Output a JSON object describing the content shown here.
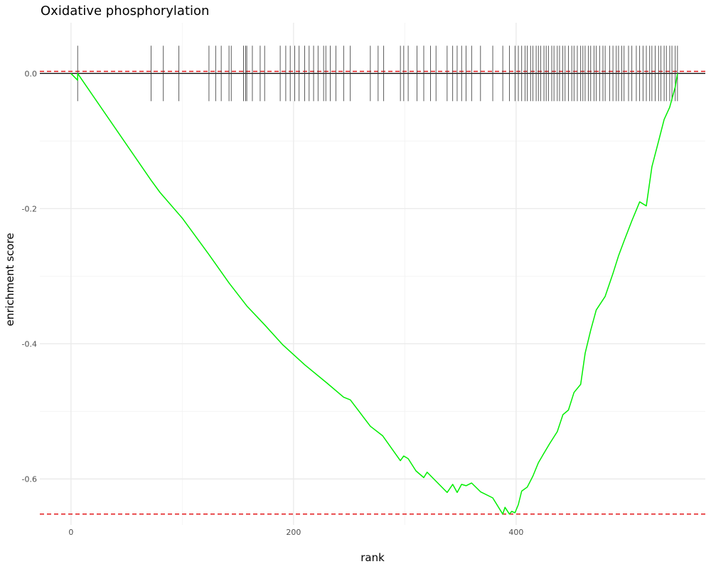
{
  "chart_data": {
    "type": "line",
    "title": "Oxidative phosphorylation",
    "xlabel": "rank",
    "ylabel": "enrichment score",
    "xlim": [
      -28,
      570
    ],
    "ylim": [
      -0.668,
      0.075
    ],
    "x_ticks": [
      0,
      200,
      400
    ],
    "x_tick_labels": [
      "0",
      "200",
      "400"
    ],
    "y_ticks": [
      0.0,
      -0.2,
      -0.4,
      -0.6
    ],
    "y_tick_labels": [
      "0.0",
      "-0.2",
      "-0.4",
      "-0.6"
    ],
    "grid": true,
    "zero_line": 0.0,
    "reference_lines": [
      0.003,
      -0.652
    ],
    "colors": {
      "curve": "#00ee00",
      "reference": "#e31a1c",
      "ticks": "#333333",
      "grid": "#ebebeb",
      "zero": "#000000"
    },
    "hits": [
      6,
      72,
      83,
      97,
      124,
      130,
      135,
      142,
      144,
      155,
      157,
      158,
      163,
      170,
      174,
      188,
      193,
      197,
      201,
      205,
      210,
      214,
      218,
      222,
      227,
      229,
      233,
      238,
      245,
      251,
      269,
      276,
      281,
      296,
      299,
      303,
      311,
      317,
      323,
      328,
      338,
      343,
      347,
      351,
      355,
      360,
      368,
      379,
      388,
      394,
      399,
      402,
      405,
      408,
      410,
      413,
      415,
      418,
      420,
      422,
      425,
      427,
      429,
      432,
      434,
      437,
      439,
      442,
      444,
      447,
      450,
      452,
      455,
      458,
      460,
      462,
      465,
      467,
      470,
      472,
      475,
      478,
      480,
      484,
      487,
      490,
      492,
      495,
      497,
      501,
      504,
      508,
      511,
      514,
      517,
      520,
      522,
      525,
      528,
      530,
      533,
      535,
      538,
      540,
      543,
      545
    ],
    "es_curve": {
      "x": [
        0,
        6,
        6,
        72,
        80,
        100,
        120,
        124,
        130,
        142,
        158,
        174,
        190,
        210,
        230,
        245,
        251,
        269,
        280,
        296,
        299,
        303,
        310,
        317,
        320,
        338,
        343,
        347,
        351,
        355,
        360,
        368,
        379,
        388,
        390,
        394,
        396,
        399,
        402,
        405,
        410,
        415,
        420,
        425,
        430,
        437,
        442,
        447,
        452,
        458,
        462,
        467,
        472,
        480,
        487,
        492,
        497,
        504,
        511,
        517,
        522,
        528,
        533,
        538,
        543,
        545
      ],
      "y": [
        0.0,
        -0.01,
        0.0,
        -0.158,
        -0.176,
        -0.214,
        -0.259,
        -0.268,
        -0.282,
        -0.31,
        -0.344,
        -0.372,
        -0.401,
        -0.431,
        -0.458,
        -0.479,
        -0.483,
        -0.522,
        -0.536,
        -0.573,
        -0.566,
        -0.57,
        -0.588,
        -0.598,
        -0.59,
        -0.62,
        -0.608,
        -0.62,
        -0.608,
        -0.61,
        -0.606,
        -0.619,
        -0.628,
        -0.652,
        -0.642,
        -0.652,
        -0.648,
        -0.65,
        -0.638,
        -0.618,
        -0.612,
        -0.596,
        -0.576,
        -0.562,
        -0.548,
        -0.53,
        -0.505,
        -0.498,
        -0.472,
        -0.46,
        -0.414,
        -0.38,
        -0.35,
        -0.33,
        -0.296,
        -0.27,
        -0.248,
        -0.218,
        -0.19,
        -0.196,
        -0.138,
        -0.1,
        -0.068,
        -0.05,
        -0.02,
        0.0
      ]
    }
  }
}
